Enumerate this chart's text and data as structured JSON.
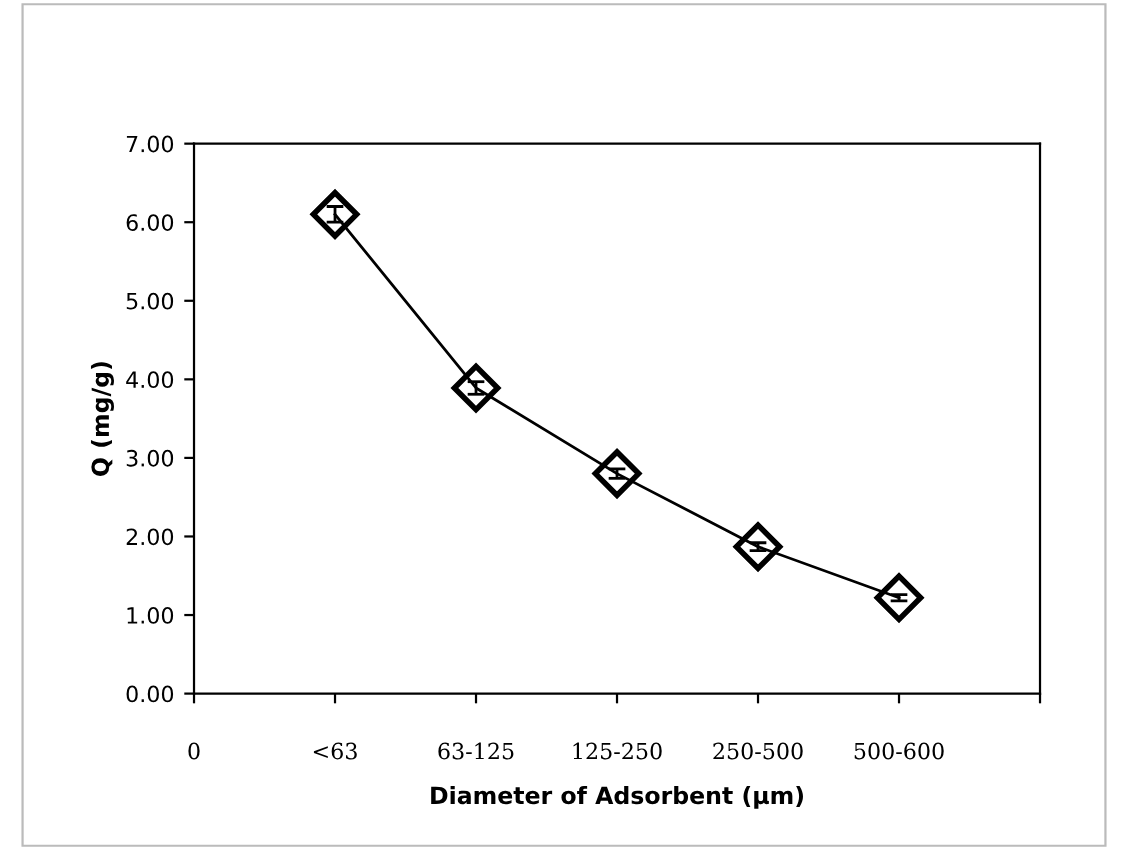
{
  "chart_data": {
    "type": "line",
    "xlabel": "Diameter of Adsorbent (µm)",
    "ylabel": "Q (mg/g)",
    "categories": [
      "0",
      "<63",
      "63-125",
      "125-250",
      "250-500",
      "500-600",
      null
    ],
    "series": [
      {
        "color": "#000000",
        "values": [
          null,
          6.1,
          3.89,
          2.8,
          1.87,
          1.22,
          null
        ],
        "errors": [
          null,
          0.1,
          0.08,
          0.06,
          0.05,
          0.04,
          null
        ]
      }
    ],
    "ylim": [
      0,
      7
    ],
    "yticks": [
      {
        "value": 0,
        "label": "0.00"
      },
      {
        "value": 1,
        "label": "1.00"
      },
      {
        "value": 2,
        "label": "2.00"
      },
      {
        "value": 3,
        "label": "3.00"
      },
      {
        "value": 4,
        "label": "4.00"
      },
      {
        "value": 5,
        "label": "5.00"
      },
      {
        "value": 6,
        "label": "6.00"
      },
      {
        "value": 7,
        "label": "7.00"
      }
    ],
    "grid": false,
    "marker": "diamond",
    "line_style": "solid"
  }
}
